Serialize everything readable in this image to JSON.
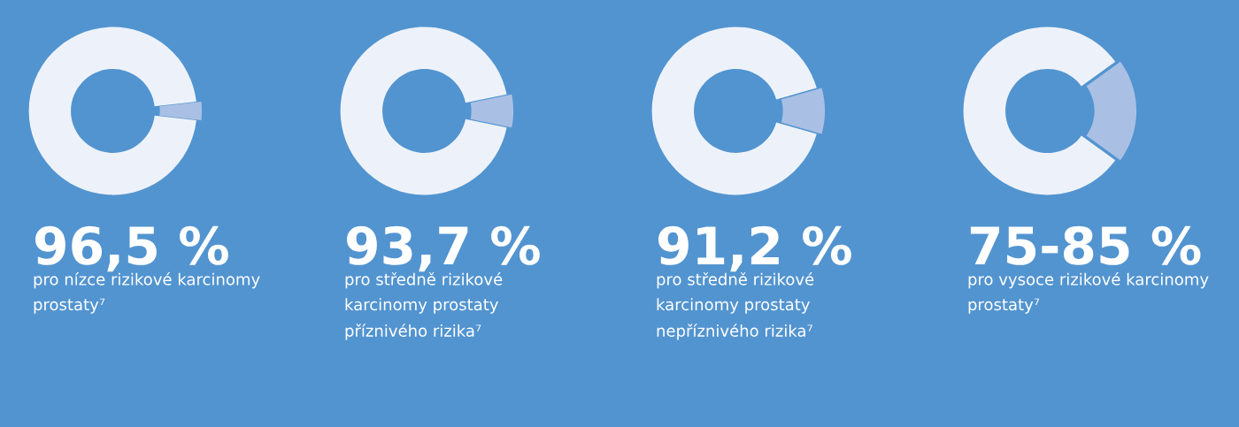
{
  "chart_data": [
    {
      "type": "donut",
      "categories": [
        null,
        null
      ],
      "values": [
        3.5,
        96.5
      ],
      "colors": [
        "#a9c0e4",
        "#edf2fa"
      ],
      "value_labels": [
        null,
        "96,5 %"
      ],
      "subtitle": "pro nízce rizikové karcinomy\nprostaty⁷"
    },
    {
      "type": "donut",
      "categories": [
        null,
        null
      ],
      "values": [
        6.3,
        93.7
      ],
      "colors": [
        "#a9c0e4",
        "#edf2fa"
      ],
      "value_labels": [
        null,
        "93,7 %"
      ],
      "subtitle": "pro středně rizikové\nkarcinomy prostaty\npříznivého rizika⁷"
    },
    {
      "type": "donut",
      "categories": [
        null,
        null
      ],
      "values": [
        8.8,
        91.2
      ],
      "colors": [
        "#a9c0e4",
        "#edf2fa"
      ],
      "value_labels": [
        null,
        "91,2 %"
      ],
      "subtitle": "pro středně rizikové\nkarcinomy prostaty\nnepříznivého rizika⁷"
    },
    {
      "type": "donut",
      "categories": [
        null,
        null
      ],
      "values": [
        20,
        80
      ],
      "colors": [
        "#a9c0e4",
        "#edf2fa"
      ],
      "annotations": [
        "75-85 %"
      ],
      "subtitle": "pro vysoce rizikové karcinomy\nprostaty⁷"
    }
  ]
}
